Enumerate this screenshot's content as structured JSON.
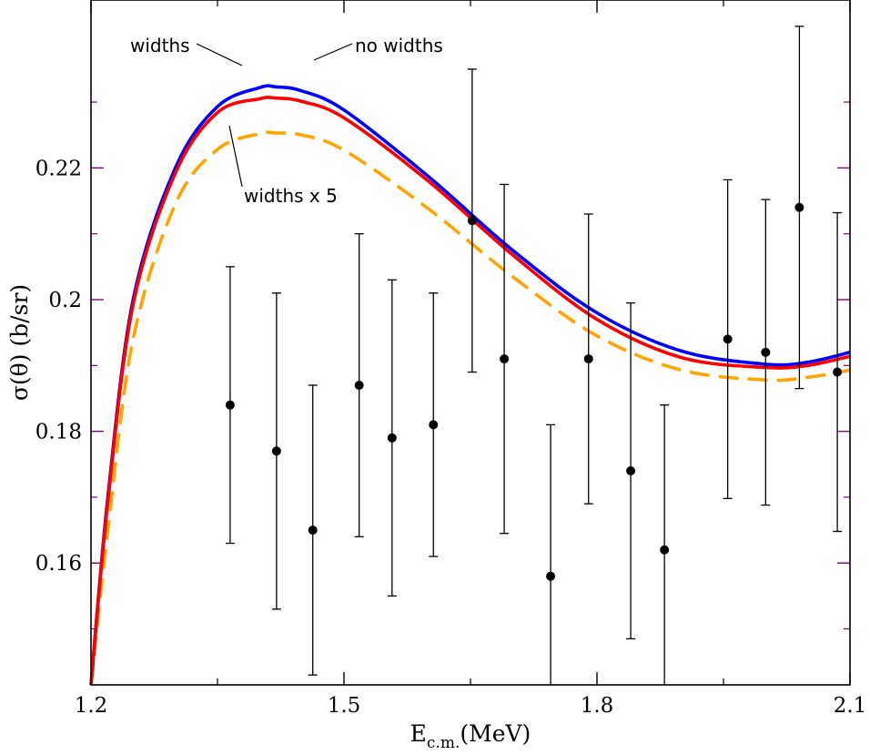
{
  "chart_data": {
    "type": "line",
    "title": "",
    "xlabel": "E",
    "xlabel_subscript": "c.m.",
    "xlabel_unit": "(MeV)",
    "ylabel": "σ(θ) (b/sr)",
    "xlim": [
      1.2,
      2.1
    ],
    "ylim": [
      0.1415,
      0.2455
    ],
    "xticks": [
      1.2,
      1.5,
      1.8,
      2.1
    ],
    "xtick_labels": [
      "1.2",
      "1.5",
      "1.8",
      "2.1"
    ],
    "yticks": [
      0.16,
      0.18,
      0.2,
      0.22
    ],
    "ytick_labels": [
      "0.16",
      "0.18",
      "0.2",
      "0.22"
    ],
    "series": [
      {
        "name": "no widths",
        "style": "solid",
        "color": "#0000ff",
        "x": [
          1.2,
          1.22,
          1.25,
          1.3,
          1.35,
          1.4,
          1.42,
          1.45,
          1.5,
          1.6,
          1.7,
          1.8,
          1.9,
          2.0,
          2.05,
          2.1
        ],
        "y": [
          0.1415,
          0.17,
          0.2,
          0.22,
          0.2293,
          0.2322,
          0.2323,
          0.2317,
          0.2288,
          0.2187,
          0.2075,
          0.198,
          0.1922,
          0.1902,
          0.1905,
          0.192
        ]
      },
      {
        "name": "widths",
        "style": "solid",
        "color": "#ff0000",
        "x": [
          1.2,
          1.22,
          1.25,
          1.3,
          1.35,
          1.4,
          1.42,
          1.45,
          1.5,
          1.6,
          1.7,
          1.8,
          1.9,
          2.0,
          2.05,
          2.1
        ],
        "y": [
          0.1415,
          0.1693,
          0.1993,
          0.2192,
          0.2284,
          0.2305,
          0.2306,
          0.2301,
          0.2276,
          0.218,
          0.2068,
          0.197,
          0.1912,
          0.1897,
          0.19,
          0.1914
        ]
      },
      {
        "name": "widths x 5",
        "style": "dashed",
        "color": "#ffa500",
        "x": [
          1.2,
          1.22,
          1.25,
          1.3,
          1.35,
          1.4,
          1.42,
          1.45,
          1.5,
          1.6,
          1.7,
          1.8,
          1.9,
          2.0,
          2.05,
          2.1
        ],
        "y": [
          0.1415,
          0.165,
          0.194,
          0.2145,
          0.2228,
          0.2252,
          0.2253,
          0.225,
          0.2227,
          0.2138,
          0.2035,
          0.1945,
          0.1893,
          0.1878,
          0.1882,
          0.1893
        ]
      }
    ],
    "data_points": [
      {
        "x": 1.365,
        "y": 0.184,
        "err": 0.021
      },
      {
        "x": 1.42,
        "y": 0.177,
        "err": 0.024
      },
      {
        "x": 1.463,
        "y": 0.165,
        "err": 0.022
      },
      {
        "x": 1.518,
        "y": 0.187,
        "err": 0.023
      },
      {
        "x": 1.557,
        "y": 0.179,
        "err": 0.024
      },
      {
        "x": 1.606,
        "y": 0.181,
        "err": 0.02
      },
      {
        "x": 1.652,
        "y": 0.212,
        "err": 0.023
      },
      {
        "x": 1.69,
        "y": 0.191,
        "err": 0.0265
      },
      {
        "x": 1.745,
        "y": 0.158,
        "err": 0.023
      },
      {
        "x": 1.79,
        "y": 0.191,
        "err": 0.022
      },
      {
        "x": 1.84,
        "y": 0.174,
        "err": 0.0255
      },
      {
        "x": 1.88,
        "y": 0.162,
        "err": 0.022
      },
      {
        "x": 1.955,
        "y": 0.194,
        "err": 0.0242
      },
      {
        "x": 2.0,
        "y": 0.192,
        "err": 0.0232
      },
      {
        "x": 2.04,
        "y": 0.214,
        "err": 0.0275
      },
      {
        "x": 2.085,
        "y": 0.189,
        "err": 0.0242
      }
    ],
    "annotations": [
      {
        "text": "widths",
        "series": "widths"
      },
      {
        "text": "no widths",
        "series": "no widths"
      },
      {
        "text": "widths x 5",
        "series": "widths x 5"
      }
    ],
    "grid": false,
    "legend": "none"
  }
}
